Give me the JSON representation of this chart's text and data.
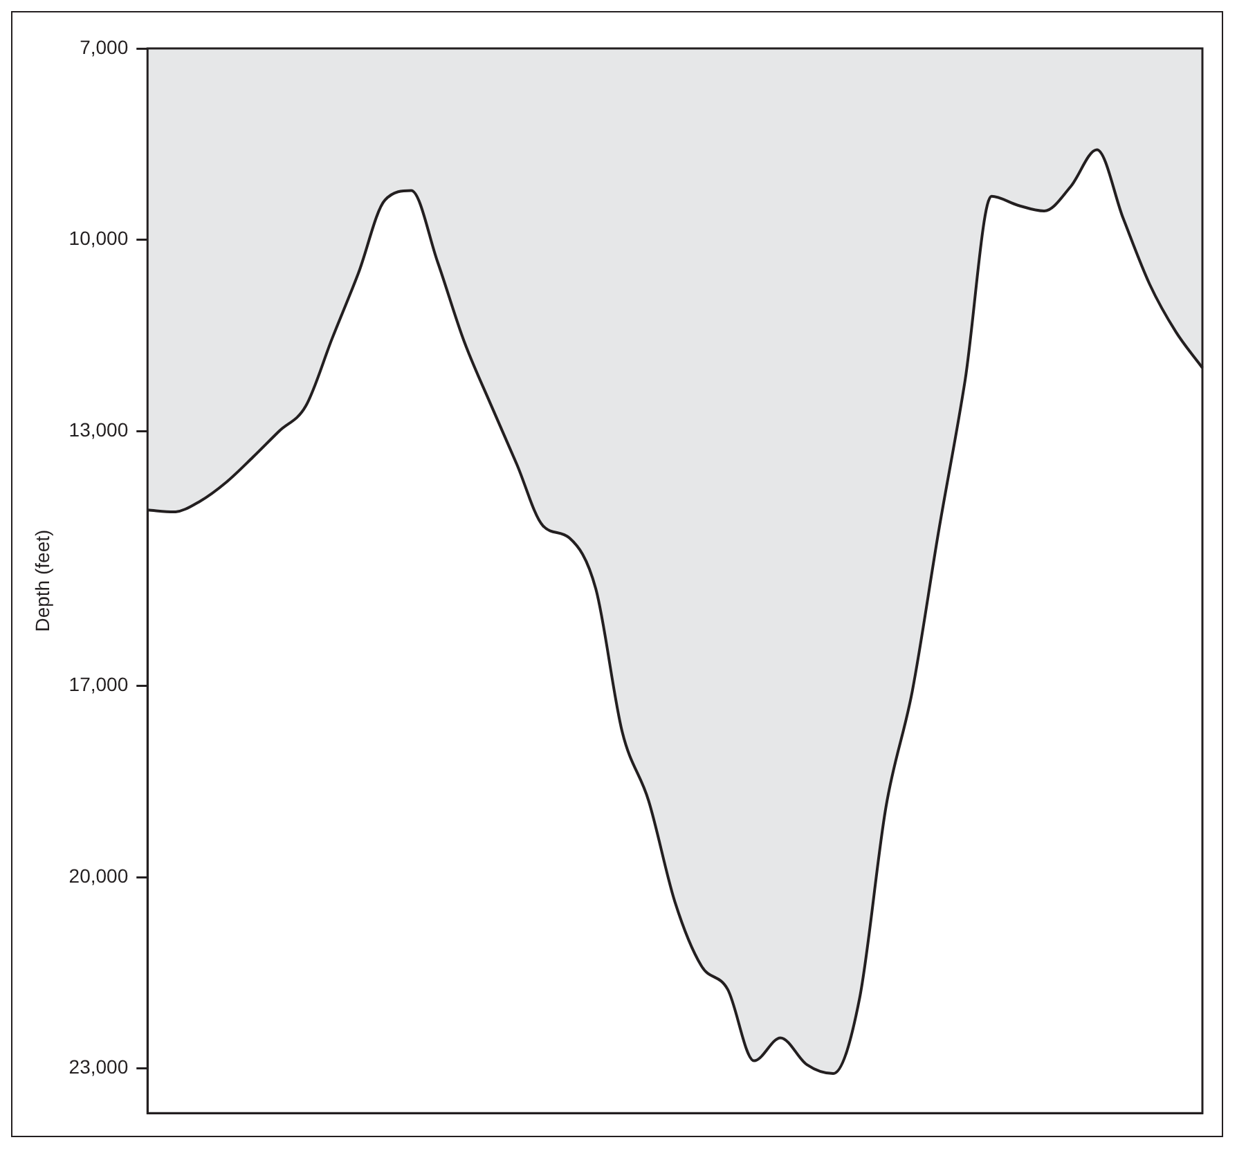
{
  "chart_data": {
    "type": "area",
    "ylabel": "Depth (feet)",
    "categories": [
      null,
      null,
      null,
      null,
      null,
      null,
      null,
      null,
      null,
      null,
      null,
      null,
      null,
      null,
      null,
      null,
      null,
      null,
      null,
      null,
      null,
      null,
      null,
      null,
      null,
      null,
      null,
      null,
      null,
      null,
      null,
      null,
      null,
      null,
      null,
      null,
      null,
      null,
      null,
      null,
      null
    ],
    "series": [
      {
        "color": "#231f20",
        "values": [
          14240,
          14270,
          14100,
          13800,
          13410,
          13000,
          12610,
          11550,
          10520,
          9380,
          9230,
          10350,
          11590,
          12570,
          13520,
          14490,
          14680,
          15480,
          17720,
          18800,
          20390,
          21390,
          21760,
          22880,
          22520,
          22940,
          23080,
          21900,
          18900,
          17080,
          14570,
          12210,
          9320,
          9460,
          9550,
          9170,
          8590,
          9670,
          10700,
          11450,
          12010
        ]
      }
    ],
    "ylim": [
      23700,
      7000
    ],
    "yticks": [
      {
        "value": 7000,
        "label": "7,000"
      },
      {
        "value": 10000,
        "label": "10,000"
      },
      {
        "value": 13000,
        "label": "13,000"
      },
      {
        "value": 17000,
        "label": "17,000"
      },
      {
        "value": 20000,
        "label": "20,000"
      },
      {
        "value": 23000,
        "label": "23,000"
      }
    ],
    "tick_labels": "y"
  }
}
